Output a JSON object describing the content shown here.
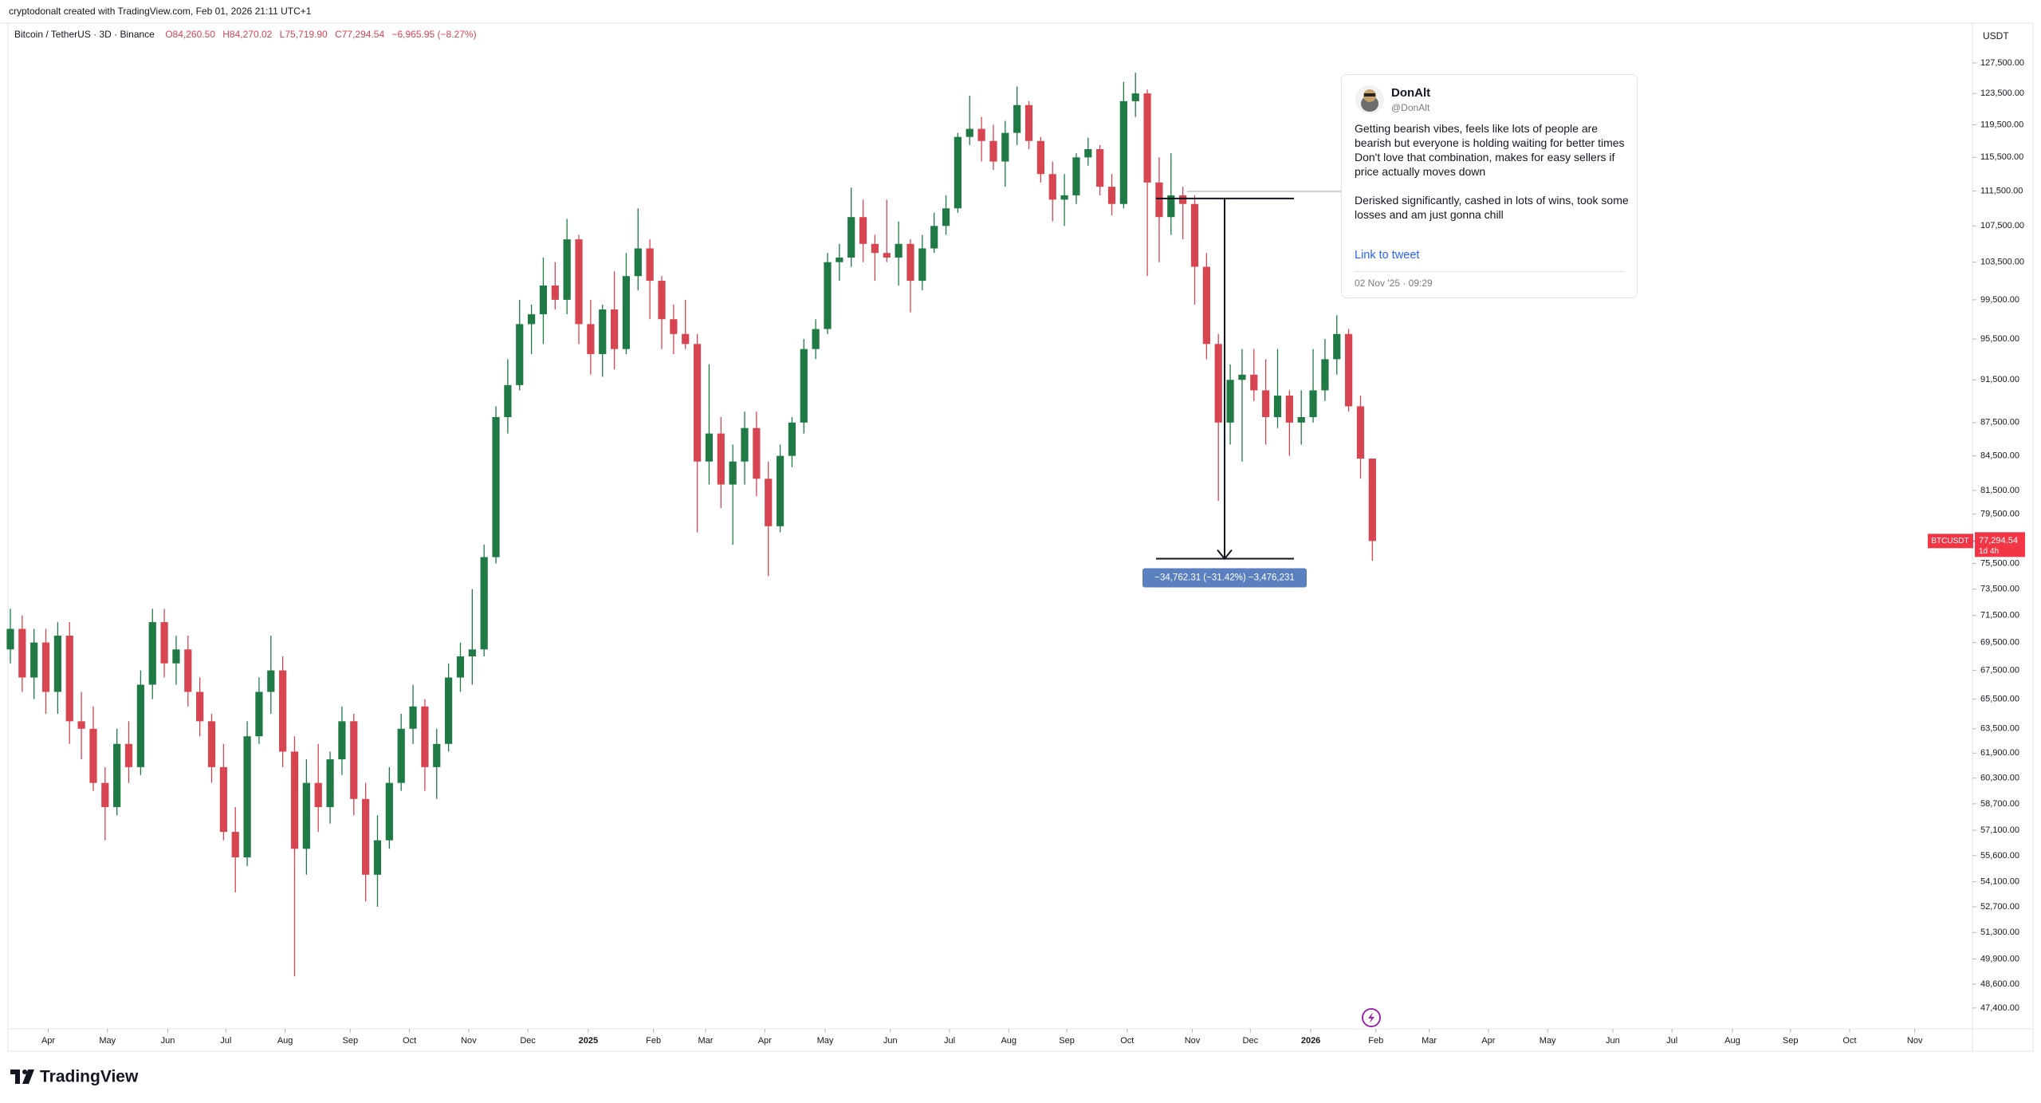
{
  "page": {
    "banner": "cryptodonalt created with TradingView.com, Feb 01, 2026 21:11 UTC+1",
    "brand": "TradingView"
  },
  "tweet": {
    "name": "DonAlt",
    "handle": "@DonAlt",
    "paragraphs": [
      "Getting bearish vibes, feels like lots of people are bearish but everyone is holding waiting for better times",
      "Don't love that combination, makes for easy sellers if price actually moves down",
      "Derisked significantly, cashed in lots of wins, took some losses and am just gonna chill"
    ],
    "link": "Link to tweet",
    "date": "02 Nov '25 · 09:29"
  },
  "chart_data": {
    "type": "candlestick",
    "header": {
      "symbol": "Bitcoin / TetherUS · 3D · Binance",
      "open": "O84,260.50",
      "high": "H84,270.02",
      "low": "L75,719.90",
      "close": "C77,294.54",
      "change": "−6,965.95 (−8.27%)"
    },
    "y_axis_unit": "USDT",
    "log_scale": true,
    "grid": false,
    "up_color": "#1f7a46",
    "down_color": "#d64550",
    "candles": [
      [
        69000,
        72000,
        68000,
        70500
      ],
      [
        70500,
        71500,
        66000,
        67000
      ],
      [
        67000,
        70500,
        65500,
        69500
      ],
      [
        69500,
        70500,
        64500,
        66000
      ],
      [
        66000,
        71000,
        64500,
        70000
      ],
      [
        70000,
        71000,
        62500,
        64000
      ],
      [
        64000,
        66000,
        61500,
        63500
      ],
      [
        63500,
        65000,
        59500,
        60000
      ],
      [
        60000,
        61000,
        56500,
        58500
      ],
      [
        58500,
        63500,
        58000,
        62500
      ],
      [
        62500,
        64000,
        60000,
        61000
      ],
      [
        61000,
        67500,
        60500,
        66500
      ],
      [
        66500,
        72000,
        65500,
        71000
      ],
      [
        71000,
        72000,
        67000,
        68000
      ],
      [
        68000,
        70000,
        66500,
        69000
      ],
      [
        69000,
        70000,
        65000,
        66000
      ],
      [
        66000,
        67000,
        63000,
        64000
      ],
      [
        64000,
        64500,
        60000,
        61000
      ],
      [
        61000,
        62500,
        56500,
        57000
      ],
      [
        57000,
        58500,
        53500,
        55500
      ],
      [
        55500,
        64000,
        55000,
        63000
      ],
      [
        63000,
        67000,
        62500,
        66000
      ],
      [
        66000,
        70000,
        64500,
        67500
      ],
      [
        67500,
        68500,
        61000,
        62000
      ],
      [
        62000,
        63000,
        49000,
        56000
      ],
      [
        56000,
        61500,
        54500,
        60000
      ],
      [
        60000,
        62500,
        57000,
        58500
      ],
      [
        58500,
        62000,
        57500,
        61500
      ],
      [
        61500,
        65000,
        60500,
        64000
      ],
      [
        64000,
        64500,
        58000,
        59000
      ],
      [
        59000,
        60000,
        53000,
        54500
      ],
      [
        54500,
        58000,
        52700,
        56500
      ],
      [
        56500,
        61000,
        56000,
        60000
      ],
      [
        60000,
        64500,
        59500,
        63500
      ],
      [
        63500,
        66500,
        62500,
        65000
      ],
      [
        65000,
        65500,
        59500,
        61000
      ],
      [
        61000,
        63500,
        59000,
        62500
      ],
      [
        62500,
        68000,
        62000,
        67000
      ],
      [
        67000,
        69500,
        66000,
        68500
      ],
      [
        68500,
        73500,
        66500,
        69000
      ],
      [
        69000,
        77000,
        68500,
        76000
      ],
      [
        76000,
        89000,
        75500,
        88000
      ],
      [
        88000,
        93500,
        86500,
        91000
      ],
      [
        91000,
        99500,
        90500,
        97000
      ],
      [
        97000,
        99000,
        94000,
        98000
      ],
      [
        98000,
        104000,
        95000,
        101000
      ],
      [
        101000,
        103500,
        98500,
        99500
      ],
      [
        99500,
        108300,
        98000,
        106000
      ],
      [
        106000,
        106500,
        95000,
        97000
      ],
      [
        97000,
        99500,
        92000,
        94000
      ],
      [
        94000,
        99000,
        91800,
        98500
      ],
      [
        98500,
        102500,
        92500,
        94500
      ],
      [
        94500,
        104500,
        94000,
        102000
      ],
      [
        102000,
        109500,
        100500,
        105000
      ],
      [
        105000,
        106000,
        97500,
        101500
      ],
      [
        101500,
        102000,
        94500,
        97500
      ],
      [
        97500,
        99000,
        94000,
        96000
      ],
      [
        96000,
        99500,
        94500,
        95000
      ],
      [
        95000,
        96000,
        78000,
        84000
      ],
      [
        84000,
        93000,
        82000,
        86500
      ],
      [
        86500,
        88000,
        80000,
        82000
      ],
      [
        82000,
        85500,
        77000,
        84000
      ],
      [
        84000,
        88500,
        82000,
        87000
      ],
      [
        87000,
        88500,
        81000,
        82500
      ],
      [
        82500,
        84000,
        74500,
        78500
      ],
      [
        78500,
        85500,
        78000,
        84500
      ],
      [
        84500,
        88000,
        83500,
        87500
      ],
      [
        87500,
        95500,
        86500,
        94500
      ],
      [
        94500,
        97500,
        93500,
        96500
      ],
      [
        96500,
        104500,
        96000,
        103500
      ],
      [
        103500,
        105500,
        101500,
        104000
      ],
      [
        104000,
        111900,
        103000,
        108500
      ],
      [
        108500,
        110500,
        103500,
        105500
      ],
      [
        105500,
        106500,
        101500,
        104500
      ],
      [
        104500,
        110500,
        103500,
        104000
      ],
      [
        104000,
        108000,
        101000,
        105500
      ],
      [
        105500,
        106000,
        98200,
        101500
      ],
      [
        101500,
        106500,
        100500,
        105000
      ],
      [
        105000,
        109000,
        104500,
        107500
      ],
      [
        107500,
        111000,
        106500,
        109500
      ],
      [
        109500,
        118500,
        109000,
        118000
      ],
      [
        118000,
        123200,
        117000,
        119000
      ],
      [
        119000,
        120500,
        115000,
        117500
      ],
      [
        117500,
        119500,
        114000,
        115000
      ],
      [
        115000,
        120000,
        112000,
        118500
      ],
      [
        118500,
        124400,
        117000,
        122000
      ],
      [
        122000,
        122500,
        116500,
        117500
      ],
      [
        117500,
        118000,
        112500,
        113500
      ],
      [
        113500,
        115000,
        108000,
        110500
      ],
      [
        110500,
        113500,
        107500,
        111000
      ],
      [
        111000,
        116000,
        110000,
        115500
      ],
      [
        115500,
        117900,
        114500,
        116500
      ],
      [
        116500,
        117000,
        111000,
        112000
      ],
      [
        112000,
        113500,
        108700,
        110000
      ],
      [
        110000,
        125000,
        109500,
        122500
      ],
      [
        122500,
        126200,
        120500,
        123500
      ],
      [
        123500,
        124000,
        102000,
        112500
      ],
      [
        112500,
        115500,
        103500,
        108500
      ],
      [
        108500,
        116000,
        106500,
        111000
      ],
      [
        111000,
        112000,
        106000,
        110000
      ],
      [
        110000,
        111000,
        99000,
        103000
      ],
      [
        103000,
        104500,
        93500,
        95000
      ],
      [
        95000,
        96000,
        80600,
        87500
      ],
      [
        87500,
        93000,
        85500,
        91500
      ],
      [
        91500,
        94500,
        84000,
        92000
      ],
      [
        92000,
        94500,
        89500,
        90500
      ],
      [
        90500,
        93500,
        85500,
        88000
      ],
      [
        88000,
        94500,
        87000,
        90000
      ],
      [
        90000,
        90500,
        84500,
        87500
      ],
      [
        87500,
        90500,
        85500,
        88000
      ],
      [
        88000,
        94500,
        87500,
        90500
      ],
      [
        90500,
        95500,
        89500,
        93500
      ],
      [
        93500,
        97900,
        92000,
        96000
      ],
      [
        96000,
        96500,
        88500,
        89000
      ],
      [
        89000,
        90000,
        82500,
        84260.5
      ],
      [
        84260.5,
        84270.02,
        75719.9,
        77294.54
      ]
    ],
    "xlim": [
      -0.2,
      165.6
    ],
    "xticks": [
      {
        "value": 3.2,
        "label": "Apr"
      },
      {
        "value": 8.2,
        "label": "May"
      },
      {
        "value": 13.3,
        "label": "Jun"
      },
      {
        "value": 18.2,
        "label": "Jul"
      },
      {
        "value": 23.2,
        "label": "Aug"
      },
      {
        "value": 28.7,
        "label": "Sep"
      },
      {
        "value": 33.7,
        "label": "Oct"
      },
      {
        "value": 38.7,
        "label": "Nov"
      },
      {
        "value": 43.7,
        "label": "Dec"
      },
      {
        "value": 48.8,
        "label": "2025"
      },
      {
        "value": 54.3,
        "label": "Feb"
      },
      {
        "value": 58.7,
        "label": "Mar"
      },
      {
        "value": 63.7,
        "label": "Apr"
      },
      {
        "value": 68.8,
        "label": "May"
      },
      {
        "value": 74.3,
        "label": "Jun"
      },
      {
        "value": 79.3,
        "label": "Jul"
      },
      {
        "value": 84.3,
        "label": "Aug"
      },
      {
        "value": 89.2,
        "label": "Sep"
      },
      {
        "value": 94.3,
        "label": "Oct"
      },
      {
        "value": 99.8,
        "label": "Nov"
      },
      {
        "value": 104.7,
        "label": "Dec"
      },
      {
        "value": 109.8,
        "label": "2026"
      },
      {
        "value": 115.3,
        "label": "Feb"
      },
      {
        "value": 119.8,
        "label": "Mar"
      },
      {
        "value": 124.8,
        "label": "Apr"
      },
      {
        "value": 129.8,
        "label": "May"
      },
      {
        "value": 135.3,
        "label": "Jun"
      },
      {
        "value": 140.3,
        "label": "Jul"
      },
      {
        "value": 145.4,
        "label": "Aug"
      },
      {
        "value": 150.3,
        "label": "Sep"
      },
      {
        "value": 155.3,
        "label": "Oct"
      },
      {
        "value": 160.8,
        "label": "Nov"
      }
    ],
    "ylim": [
      46380,
      132820
    ],
    "yticks": [
      {
        "value": 127500,
        "label": "127,500.00"
      },
      {
        "value": 123500,
        "label": "123,500.00"
      },
      {
        "value": 119500,
        "label": "119,500.00"
      },
      {
        "value": 115500,
        "label": "115,500.00"
      },
      {
        "value": 111500,
        "label": "111,500.00"
      },
      {
        "value": 107500,
        "label": "107,500.00"
      },
      {
        "value": 103500,
        "label": "103,500.00"
      },
      {
        "value": 99500,
        "label": "99,500.00"
      },
      {
        "value": 95500,
        "label": "95,500.00"
      },
      {
        "value": 91500,
        "label": "91,500.00"
      },
      {
        "value": 87500,
        "label": "87,500.00"
      },
      {
        "value": 84500,
        "label": "84,500.00"
      },
      {
        "value": 81500,
        "label": "81,500.00"
      },
      {
        "value": 79500,
        "label": "79,500.00"
      },
      {
        "value": 75500,
        "label": "75,500.00"
      },
      {
        "value": 73500,
        "label": "73,500.00"
      },
      {
        "value": 71500,
        "label": "71,500.00"
      },
      {
        "value": 69500,
        "label": "69,500.00"
      },
      {
        "value": 67500,
        "label": "67,500.00"
      },
      {
        "value": 65500,
        "label": "65,500.00"
      },
      {
        "value": 63500,
        "label": "63,500.00"
      },
      {
        "value": 61900,
        "label": "61,900.00"
      },
      {
        "value": 60300,
        "label": "60,300.00"
      },
      {
        "value": 58700,
        "label": "58,700.00"
      },
      {
        "value": 57100,
        "label": "57,100.00"
      },
      {
        "value": 55600,
        "label": "55,600.00"
      },
      {
        "value": 54100,
        "label": "54,100.00"
      },
      {
        "value": 52700,
        "label": "52,700.00"
      },
      {
        "value": 51300,
        "label": "51,300.00"
      },
      {
        "value": 49900,
        "label": "49,900.00"
      },
      {
        "value": 48600,
        "label": "48,600.00"
      },
      {
        "value": 47400,
        "label": "47,400.00"
      }
    ],
    "price_tag": {
      "symbol": "BTCUSDT",
      "price": "77,294.54",
      "countdown": "1d 4h",
      "color": "#f23645"
    },
    "measure": {
      "from": 110637,
      "to": 75875,
      "label": "−34,762.31 (−31.42%) −3,476,231",
      "color": "#5b80c0"
    }
  }
}
